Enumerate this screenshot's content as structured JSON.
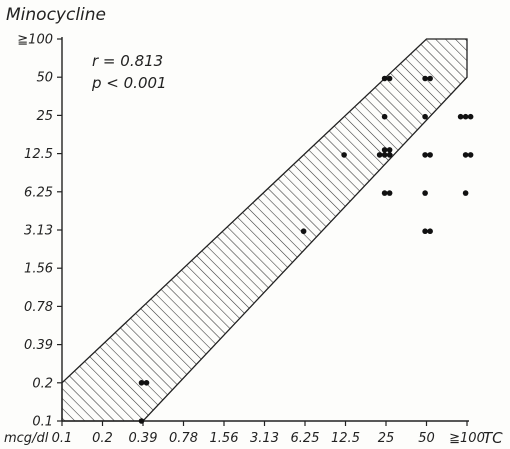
{
  "chart_data": {
    "type": "scatter",
    "title": "Minocycline",
    "xlabel": "TC",
    "ylabel": "Minocycline",
    "unit_label": "mcg/dl",
    "x_ticks": [
      "0.1",
      "0.2",
      "0.39",
      "0.78",
      "1.56",
      "3.13",
      "6.25",
      "12.5",
      "25",
      "50",
      "≧100"
    ],
    "y_ticks": [
      "0.1",
      "0.2",
      "0.39",
      "0.78",
      "1.56",
      "3.13",
      "6.25",
      "12.5",
      "25",
      "50",
      "≧100"
    ],
    "x_scale": "log2",
    "y_scale": "log2",
    "stats": {
      "r": "r = 0.813",
      "p": "p < 0.001"
    },
    "band": {
      "description": "hatched agreement band",
      "lower_offset_steps": -2,
      "upper_offset_steps": 1
    },
    "points": [
      {
        "x": 0.39,
        "y": 0.2
      },
      {
        "x": 0.39,
        "y": 0.2
      },
      {
        "x": 0.39,
        "y": 0.1
      },
      {
        "x": 6.25,
        "y": 3.13
      },
      {
        "x": 12.5,
        "y": 12.5
      },
      {
        "x": 25,
        "y": 50
      },
      {
        "x": 25,
        "y": 50
      },
      {
        "x": 25,
        "y": 25
      },
      {
        "x": 25,
        "y": 12.5
      },
      {
        "x": 25,
        "y": 12.5
      },
      {
        "x": 25,
        "y": 12.5
      },
      {
        "x": 25,
        "y": 12.5
      },
      {
        "x": 25,
        "y": 12.5
      },
      {
        "x": 25,
        "y": 6.25
      },
      {
        "x": 25,
        "y": 6.25
      },
      {
        "x": 50,
        "y": 50
      },
      {
        "x": 50,
        "y": 50
      },
      {
        "x": 50,
        "y": 25
      },
      {
        "x": 50,
        "y": 12.5
      },
      {
        "x": 50,
        "y": 12.5
      },
      {
        "x": 50,
        "y": 6.25
      },
      {
        "x": 50,
        "y": 3.13
      },
      {
        "x": 50,
        "y": 3.13
      },
      {
        "x": 100,
        "y": 25
      },
      {
        "x": 100,
        "y": 25
      },
      {
        "x": 100,
        "y": 25
      },
      {
        "x": 100,
        "y": 12.5
      },
      {
        "x": 100,
        "y": 12.5
      },
      {
        "x": 100,
        "y": 6.25
      }
    ]
  }
}
